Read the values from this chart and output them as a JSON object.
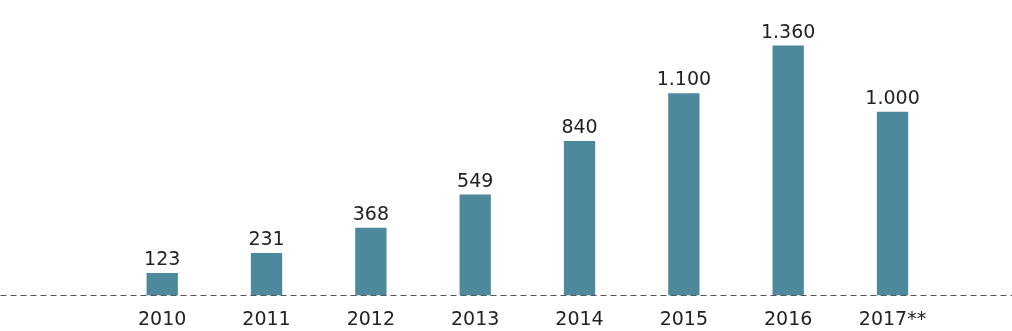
{
  "chart_data": {
    "type": "bar",
    "categories": [
      "2010",
      "2011",
      "2012",
      "2013",
      "2014",
      "2015",
      "2016",
      "2017**"
    ],
    "values": [
      123,
      231,
      368,
      549,
      840,
      1100,
      1360,
      1000
    ],
    "value_labels": [
      "123",
      "231",
      "368",
      "549",
      "840",
      "1.100",
      "1.360",
      "1.000"
    ],
    "color": "#4d889d",
    "grid": false
  }
}
